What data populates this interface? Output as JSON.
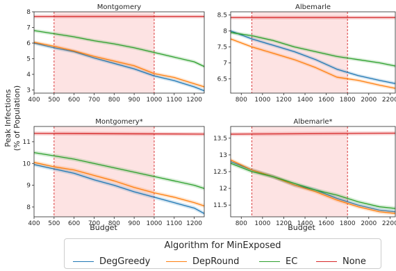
{
  "legend": {
    "title": "Algorithm for MinExposed",
    "items": [
      {
        "label": "DegGreedy",
        "color": "#1f77b4"
      },
      {
        "label": "DepRound",
        "color": "#ff7f0e"
      },
      {
        "label": "EC",
        "color": "#2ca02c"
      },
      {
        "label": "None",
        "color": "#d62728"
      }
    ]
  },
  "shared_labels": {
    "xlabel": "Budget",
    "ylabel_line1": "Peak Infections",
    "ylabel_line2": "(% of Population)"
  },
  "chart_data": [
    {
      "type": "line",
      "title": "Montgomery",
      "xlim": [
        400,
        1250
      ],
      "ylim": [
        2.8,
        8.0
      ],
      "xticks": [
        400,
        500,
        600,
        700,
        800,
        900,
        1000,
        1100,
        1200
      ],
      "yticks": [
        3,
        4,
        5,
        6,
        7,
        8
      ],
      "shaded_region": [
        500,
        1000
      ],
      "series": [
        {
          "name": "DegGreedy",
          "x": [
            400,
            500,
            600,
            700,
            800,
            900,
            1000,
            1100,
            1200,
            1250
          ],
          "y": [
            6.0,
            5.7,
            5.45,
            5.05,
            4.7,
            4.35,
            3.9,
            3.6,
            3.2,
            2.95
          ]
        },
        {
          "name": "DepRound",
          "x": [
            400,
            500,
            600,
            700,
            800,
            900,
            1000,
            1100,
            1200,
            1250
          ],
          "y": [
            6.05,
            5.8,
            5.5,
            5.15,
            4.85,
            4.55,
            4.05,
            3.8,
            3.4,
            3.2
          ]
        },
        {
          "name": "EC",
          "x": [
            400,
            500,
            600,
            700,
            800,
            900,
            1000,
            1100,
            1200,
            1250
          ],
          "y": [
            6.8,
            6.6,
            6.4,
            6.15,
            5.95,
            5.7,
            5.4,
            5.1,
            4.8,
            4.5
          ]
        },
        {
          "name": "None",
          "x": [
            400,
            1250
          ],
          "y": [
            7.7,
            7.7
          ]
        }
      ]
    },
    {
      "type": "line",
      "title": "Albemarle",
      "xlim": [
        700,
        2250
      ],
      "ylim": [
        6.05,
        8.6
      ],
      "xticks": [
        800,
        1000,
        1200,
        1400,
        1600,
        1800,
        2000,
        2200
      ],
      "yticks": [
        6.5,
        7.0,
        7.5,
        8.0,
        8.5
      ],
      "shaded_region": [
        900,
        1800
      ],
      "series": [
        {
          "name": "DegGreedy",
          "x": [
            700,
            900,
            1100,
            1300,
            1500,
            1700,
            1900,
            2100,
            2250
          ],
          "y": [
            8.0,
            7.75,
            7.55,
            7.35,
            7.1,
            6.8,
            6.6,
            6.45,
            6.35
          ]
        },
        {
          "name": "DepRound",
          "x": [
            700,
            900,
            1100,
            1300,
            1500,
            1700,
            1900,
            2100,
            2250
          ],
          "y": [
            7.75,
            7.5,
            7.3,
            7.1,
            6.85,
            6.55,
            6.45,
            6.3,
            6.2
          ]
        },
        {
          "name": "EC",
          "x": [
            700,
            900,
            1100,
            1300,
            1500,
            1700,
            1900,
            2100,
            2250
          ],
          "y": [
            7.95,
            7.85,
            7.7,
            7.5,
            7.35,
            7.2,
            7.1,
            7.0,
            6.9
          ]
        },
        {
          "name": "None",
          "x": [
            700,
            2250
          ],
          "y": [
            8.42,
            8.42
          ]
        }
      ]
    },
    {
      "type": "line",
      "title": "Montgomery*",
      "xlim": [
        400,
        1250
      ],
      "ylim": [
        7.55,
        11.7
      ],
      "xticks": [
        400,
        500,
        600,
        700,
        800,
        900,
        1000,
        1100,
        1200
      ],
      "yticks": [
        8,
        9,
        10,
        11
      ],
      "shaded_region": [
        500,
        1000
      ],
      "series": [
        {
          "name": "DegGreedy",
          "x": [
            400,
            500,
            600,
            700,
            800,
            900,
            1000,
            1100,
            1200,
            1250
          ],
          "y": [
            9.95,
            9.75,
            9.55,
            9.25,
            9.0,
            8.7,
            8.45,
            8.2,
            7.95,
            7.7
          ]
        },
        {
          "name": "DepRound",
          "x": [
            400,
            500,
            600,
            700,
            800,
            900,
            1000,
            1100,
            1200,
            1250
          ],
          "y": [
            10.05,
            9.85,
            9.7,
            9.45,
            9.2,
            8.9,
            8.65,
            8.45,
            8.2,
            8.05
          ]
        },
        {
          "name": "EC",
          "x": [
            400,
            500,
            600,
            700,
            800,
            900,
            1000,
            1100,
            1200,
            1250
          ],
          "y": [
            10.5,
            10.35,
            10.2,
            10.0,
            9.8,
            9.6,
            9.4,
            9.2,
            9.0,
            8.85
          ]
        },
        {
          "name": "None",
          "x": [
            400,
            1250
          ],
          "y": [
            11.38,
            11.35
          ]
        }
      ]
    },
    {
      "type": "line",
      "title": "Albemarle*",
      "xlim": [
        700,
        2250
      ],
      "ylim": [
        11.15,
        13.85
      ],
      "xticks": [
        800,
        1000,
        1200,
        1400,
        1600,
        1800,
        2000,
        2200
      ],
      "yticks": [
        11.5,
        12.0,
        12.5,
        13.0,
        13.5
      ],
      "shaded_region": [
        900,
        1800
      ],
      "series": [
        {
          "name": "DegGreedy",
          "x": [
            700,
            900,
            1100,
            1300,
            1500,
            1700,
            1900,
            2100,
            2250
          ],
          "y": [
            12.8,
            12.55,
            12.35,
            12.1,
            11.95,
            11.7,
            11.5,
            11.35,
            11.3
          ]
        },
        {
          "name": "DepRound",
          "x": [
            700,
            900,
            1100,
            1300,
            1500,
            1700,
            1900,
            2100,
            2250
          ],
          "y": [
            12.85,
            12.55,
            12.35,
            12.1,
            11.9,
            11.65,
            11.45,
            11.3,
            11.25
          ]
        },
        {
          "name": "EC",
          "x": [
            700,
            900,
            1100,
            1300,
            1500,
            1700,
            1900,
            2100,
            2250
          ],
          "y": [
            12.75,
            12.5,
            12.35,
            12.15,
            11.95,
            11.8,
            11.6,
            11.45,
            11.4
          ]
        },
        {
          "name": "None",
          "x": [
            700,
            2250
          ],
          "y": [
            13.62,
            13.65
          ]
        }
      ]
    }
  ]
}
